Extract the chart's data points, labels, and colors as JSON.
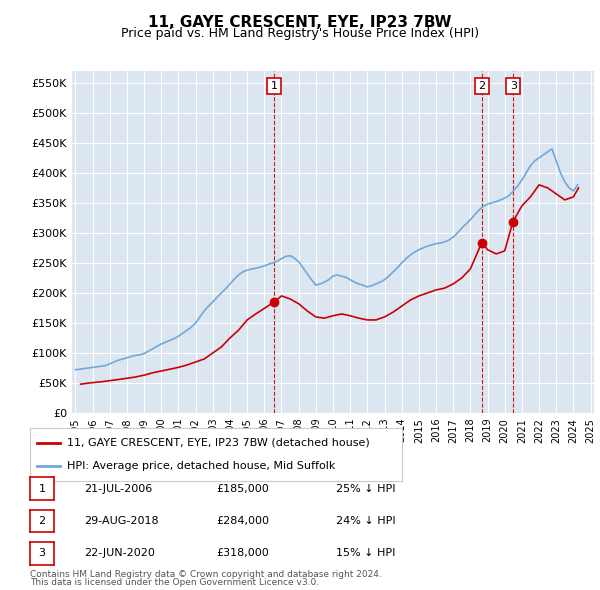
{
  "title": "11, GAYE CRESCENT, EYE, IP23 7BW",
  "subtitle": "Price paid vs. HM Land Registry's House Price Index (HPI)",
  "background_color": "#dce6f1",
  "plot_bg_color": "#dce6f1",
  "ylabel_color": "#333333",
  "ylim": [
    0,
    570000
  ],
  "yticks": [
    0,
    50000,
    100000,
    150000,
    200000,
    250000,
    300000,
    350000,
    400000,
    450000,
    500000,
    550000
  ],
  "ytick_labels": [
    "£0",
    "£50K",
    "£100K",
    "£150K",
    "£200K",
    "£250K",
    "£300K",
    "£350K",
    "£400K",
    "£450K",
    "£500K",
    "£550K"
  ],
  "hpi_color": "#6fa8dc",
  "price_color": "#cc0000",
  "marker_color": "#cc0000",
  "vline_color": "#cc0000",
  "grid_color": "#ffffff",
  "sale_dates": [
    "2006-07-21",
    "2018-08-29",
    "2020-06-22"
  ],
  "sale_prices": [
    185000,
    284000,
    318000
  ],
  "sale_labels": [
    "1",
    "2",
    "3"
  ],
  "sale_info": [
    {
      "label": "1",
      "date": "21-JUL-2006",
      "price": "£185,000",
      "hpi": "25% ↓ HPI"
    },
    {
      "label": "2",
      "date": "29-AUG-2018",
      "price": "£284,000",
      "hpi": "24% ↓ HPI"
    },
    {
      "label": "3",
      "date": "22-JUN-2020",
      "price": "£318,000",
      "hpi": "15% ↓ HPI"
    }
  ],
  "legend_entries": [
    "11, GAYE CRESCENT, EYE, IP23 7BW (detached house)",
    "HPI: Average price, detached house, Mid Suffolk"
  ],
  "footnote1": "Contains HM Land Registry data © Crown copyright and database right 2024.",
  "footnote2": "This data is licensed under the Open Government Licence v3.0.",
  "hpi_years": [
    1995,
    1995.25,
    1995.5,
    1995.75,
    1996,
    1996.25,
    1996.5,
    1996.75,
    1997,
    1997.25,
    1997.5,
    1997.75,
    1998,
    1998.25,
    1998.5,
    1998.75,
    1999,
    1999.25,
    1999.5,
    1999.75,
    2000,
    2000.25,
    2000.5,
    2000.75,
    2001,
    2001.25,
    2001.5,
    2001.75,
    2002,
    2002.25,
    2002.5,
    2002.75,
    2003,
    2003.25,
    2003.5,
    2003.75,
    2004,
    2004.25,
    2004.5,
    2004.75,
    2005,
    2005.25,
    2005.5,
    2005.75,
    2006,
    2006.25,
    2006.5,
    2006.75,
    2007,
    2007.25,
    2007.5,
    2007.75,
    2008,
    2008.25,
    2008.5,
    2008.75,
    2009,
    2009.25,
    2009.5,
    2009.75,
    2010,
    2010.25,
    2010.5,
    2010.75,
    2011,
    2011.25,
    2011.5,
    2011.75,
    2012,
    2012.25,
    2012.5,
    2012.75,
    2013,
    2013.25,
    2013.5,
    2013.75,
    2014,
    2014.25,
    2014.5,
    2014.75,
    2015,
    2015.25,
    2015.5,
    2015.75,
    2016,
    2016.25,
    2016.5,
    2016.75,
    2017,
    2017.25,
    2017.5,
    2017.75,
    2018,
    2018.25,
    2018.5,
    2018.75,
    2019,
    2019.25,
    2019.5,
    2019.75,
    2020,
    2020.25,
    2020.5,
    2020.75,
    2021,
    2021.25,
    2021.5,
    2021.75,
    2022,
    2022.25,
    2022.5,
    2022.75,
    2023,
    2023.25,
    2023.5,
    2023.75,
    2024,
    2024.25
  ],
  "hpi_values": [
    72000,
    73000,
    74000,
    75000,
    76000,
    77000,
    78000,
    79000,
    82000,
    85000,
    88000,
    90000,
    92000,
    94000,
    96000,
    97000,
    99000,
    103000,
    107000,
    111000,
    115000,
    118000,
    121000,
    124000,
    128000,
    133000,
    138000,
    143000,
    150000,
    160000,
    170000,
    178000,
    185000,
    193000,
    200000,
    207000,
    215000,
    223000,
    230000,
    235000,
    238000,
    240000,
    241000,
    243000,
    245000,
    248000,
    250000,
    253000,
    257000,
    261000,
    262000,
    258000,
    252000,
    242000,
    232000,
    222000,
    213000,
    215000,
    218000,
    222000,
    228000,
    230000,
    228000,
    226000,
    222000,
    218000,
    215000,
    213000,
    210000,
    212000,
    215000,
    218000,
    222000,
    228000,
    235000,
    242000,
    250000,
    257000,
    263000,
    268000,
    272000,
    275000,
    278000,
    280000,
    282000,
    283000,
    285000,
    288000,
    293000,
    300000,
    308000,
    315000,
    322000,
    330000,
    338000,
    344000,
    348000,
    350000,
    352000,
    355000,
    358000,
    362000,
    370000,
    378000,
    388000,
    400000,
    412000,
    420000,
    425000,
    430000,
    435000,
    440000,
    420000,
    400000,
    385000,
    375000,
    370000,
    380000
  ],
  "price_years": [
    1995.3,
    1995.8,
    1996.5,
    1997.3,
    1997.8,
    1998.5,
    1999.0,
    1999.5,
    2000.0,
    2000.5,
    2001.0,
    2001.5,
    2002.0,
    2002.5,
    2003.0,
    2003.5,
    2004.0,
    2004.5,
    2005.0,
    2005.5,
    2006.58,
    2007.0,
    2007.5,
    2008.0,
    2008.5,
    2009.0,
    2009.5,
    2010.0,
    2010.5,
    2011.0,
    2011.5,
    2012.0,
    2012.5,
    2013.0,
    2013.5,
    2014.0,
    2014.5,
    2015.0,
    2015.5,
    2016.0,
    2016.5,
    2017.0,
    2017.5,
    2018.0,
    2018.67,
    2019.0,
    2019.5,
    2020.0,
    2020.47,
    2020.8,
    2021.0,
    2021.5,
    2022.0,
    2022.5,
    2023.0,
    2023.5,
    2024.0,
    2024.3
  ],
  "price_values": [
    48000,
    50000,
    52000,
    55000,
    57000,
    60000,
    63000,
    67000,
    70000,
    73000,
    76000,
    80000,
    85000,
    90000,
    100000,
    110000,
    125000,
    138000,
    155000,
    165000,
    185000,
    195000,
    190000,
    182000,
    170000,
    160000,
    158000,
    162000,
    165000,
    162000,
    158000,
    155000,
    155000,
    160000,
    168000,
    178000,
    188000,
    195000,
    200000,
    205000,
    208000,
    215000,
    225000,
    240000,
    284000,
    272000,
    265000,
    270000,
    318000,
    335000,
    345000,
    360000,
    380000,
    375000,
    365000,
    355000,
    360000,
    375000
  ]
}
